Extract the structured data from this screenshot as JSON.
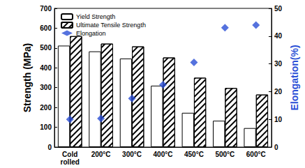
{
  "chart_data": {
    "type": "bar",
    "categories": [
      "Cold rolled",
      "200°C",
      "300°C",
      "400°C",
      "450°C",
      "500°C",
      "600°C"
    ],
    "series": [
      {
        "name": "Yield Strength",
        "type": "bar",
        "color": "#ffffff",
        "values": [
          512,
          483,
          447,
          310,
          173,
          133,
          96
        ]
      },
      {
        "name": "Ultimate Tensile Strength",
        "type": "bar",
        "color": "#000000",
        "values": [
          560,
          522,
          508,
          452,
          350,
          298,
          265
        ]
      },
      {
        "name": "Elongation",
        "type": "scatter",
        "axis": "y2",
        "marker": "diamond",
        "color": "#2a4fd6",
        "values": [
          10,
          10.3,
          17.5,
          22.5,
          30.5,
          43,
          44
        ]
      }
    ],
    "y_label": "Strength (MPa)",
    "y2_label": "Elongation(%)",
    "ylim": [
      0,
      700
    ],
    "yticks": [
      0,
      100,
      200,
      300,
      400,
      500,
      600,
      700
    ],
    "y2lim": [
      0,
      50
    ],
    "y2ticks": [
      0,
      10,
      20,
      30,
      40,
      50
    ],
    "grid": false,
    "legend": "upper left"
  }
}
